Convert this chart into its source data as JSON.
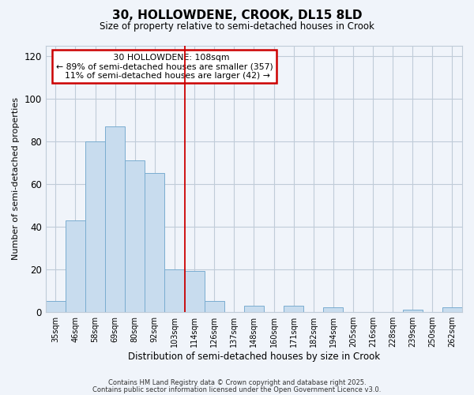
{
  "title": "30, HOLLOWDENE, CROOK, DL15 8LD",
  "subtitle": "Size of property relative to semi-detached houses in Crook",
  "xlabel": "Distribution of semi-detached houses by size in Crook",
  "ylabel": "Number of semi-detached properties",
  "bar_labels": [
    "35sqm",
    "46sqm",
    "58sqm",
    "69sqm",
    "80sqm",
    "92sqm",
    "103sqm",
    "114sqm",
    "126sqm",
    "137sqm",
    "148sqm",
    "160sqm",
    "171sqm",
    "182sqm",
    "194sqm",
    "205sqm",
    "216sqm",
    "228sqm",
    "239sqm",
    "250sqm",
    "262sqm"
  ],
  "bar_heights": [
    5,
    43,
    80,
    87,
    71,
    65,
    20,
    19,
    5,
    0,
    3,
    0,
    3,
    0,
    2,
    0,
    0,
    0,
    1,
    0,
    2
  ],
  "bar_color": "#c8dcee",
  "bar_edge_color": "#7aadd0",
  "vline_x": 6.5,
  "vline_color": "#cc0000",
  "annotation_title": "30 HOLLOWDENE: 108sqm",
  "annotation_line1": "← 89% of semi-detached houses are smaller (357)",
  "annotation_line2": "  11% of semi-detached houses are larger (42) →",
  "annotation_box_color": "#ffffff",
  "annotation_box_edge": "#cc0000",
  "ylim": [
    0,
    125
  ],
  "yticks": [
    0,
    20,
    40,
    60,
    80,
    100,
    120
  ],
  "footer1": "Contains HM Land Registry data © Crown copyright and database right 2025.",
  "footer2": "Contains public sector information licensed under the Open Government Licence v3.0.",
  "bg_color": "#f0f4fa",
  "grid_color": "#c0ccd8"
}
